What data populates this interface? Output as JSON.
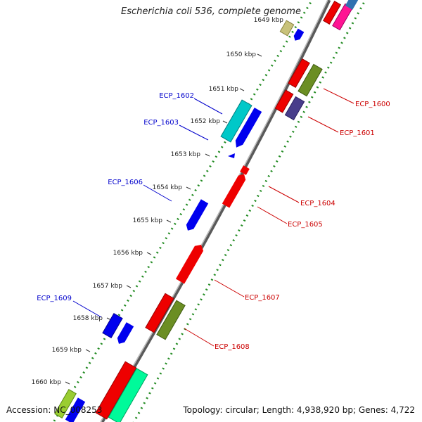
{
  "title": "Escherichia coli 536, complete genome",
  "accession": "Accession: NC_008253",
  "summary": "Topology: circular; Length: 4,938,920 bp; Genes: 4,722",
  "ticks": [
    "1649 kbp",
    "1650 kbp",
    "1651 kbp",
    "1652 kbp",
    "1653 kbp",
    "1654 kbp",
    "1655 kbp",
    "1656 kbp",
    "1657 kbp",
    "1658 kbp",
    "1659 kbp",
    "1660 kbp"
  ],
  "labels_left": [
    "ECP_1602",
    "ECP_1603",
    "ECP_1606",
    "ECP_1609"
  ],
  "labels_right": [
    "ECP_1600",
    "ECP_1601",
    "ECP_1604",
    "ECP_1605",
    "ECP_1607",
    "ECP_1608"
  ],
  "colors": {
    "forward_label": "#0000cc",
    "reverse_label": "#cc0000",
    "backbone": "#777777",
    "tick_dots": "#228b22"
  }
}
